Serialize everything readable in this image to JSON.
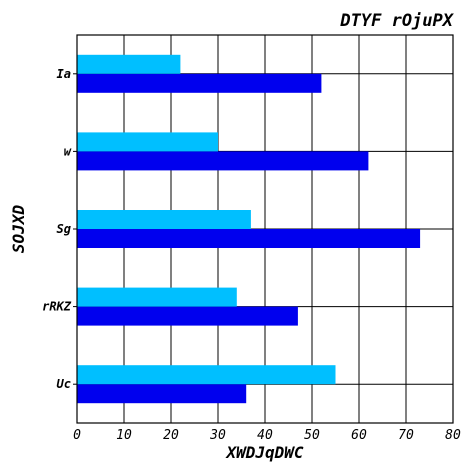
{
  "chart_data": {
    "type": "bar",
    "orientation": "horizontal",
    "title": "DTYF rOjuPX",
    "xlabel": "XWDJqDWC",
    "ylabel": "SOJXD",
    "categories": [
      "Uc",
      "rRKZ",
      "Sg",
      "w",
      "Ia"
    ],
    "series": [
      {
        "color": "#0000ee",
        "values": [
          36,
          47,
          73,
          62,
          52
        ]
      },
      {
        "color": "#00bfff",
        "values": [
          55,
          34,
          37,
          30,
          22
        ]
      }
    ],
    "xlim": [
      0,
      80
    ],
    "xticks": [
      0,
      10,
      20,
      30,
      40,
      50,
      60,
      70,
      80
    ],
    "grid": true
  }
}
